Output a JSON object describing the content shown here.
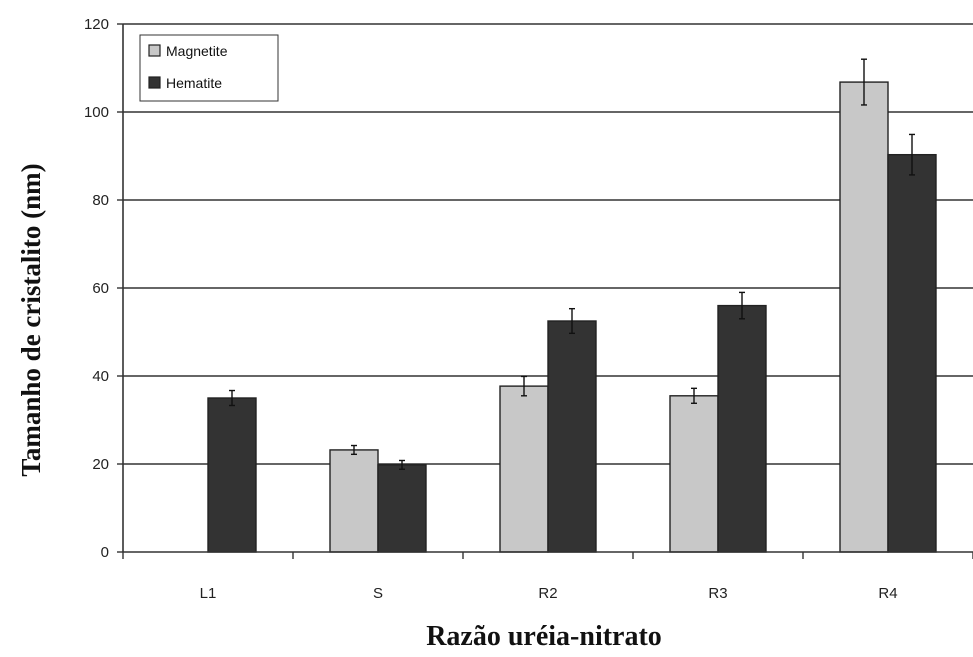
{
  "chart_data": {
    "type": "bar",
    "categories": [
      "L1",
      "S",
      "R2",
      "R3",
      "R4"
    ],
    "series": [
      {
        "name": "Magnetite",
        "color": "#c8c8c8",
        "values": [
          null,
          23.2,
          37.7,
          35.5,
          106.8
        ],
        "errors": [
          null,
          1.0,
          2.2,
          1.7,
          5.2
        ]
      },
      {
        "name": "Hematite",
        "color": "#333333",
        "values": [
          35.0,
          19.8,
          52.5,
          56.0,
          90.3
        ],
        "errors": [
          1.7,
          1.0,
          2.8,
          3.0,
          4.6
        ]
      }
    ],
    "xlabel": "Razão uréia-nitrato",
    "ylabel": "Tamanho de cristalito (nm)",
    "ylim": [
      0,
      120
    ],
    "yticks": [
      0,
      20,
      40,
      60,
      80,
      100,
      120
    ],
    "grid": true,
    "legend_position": "top-left"
  }
}
